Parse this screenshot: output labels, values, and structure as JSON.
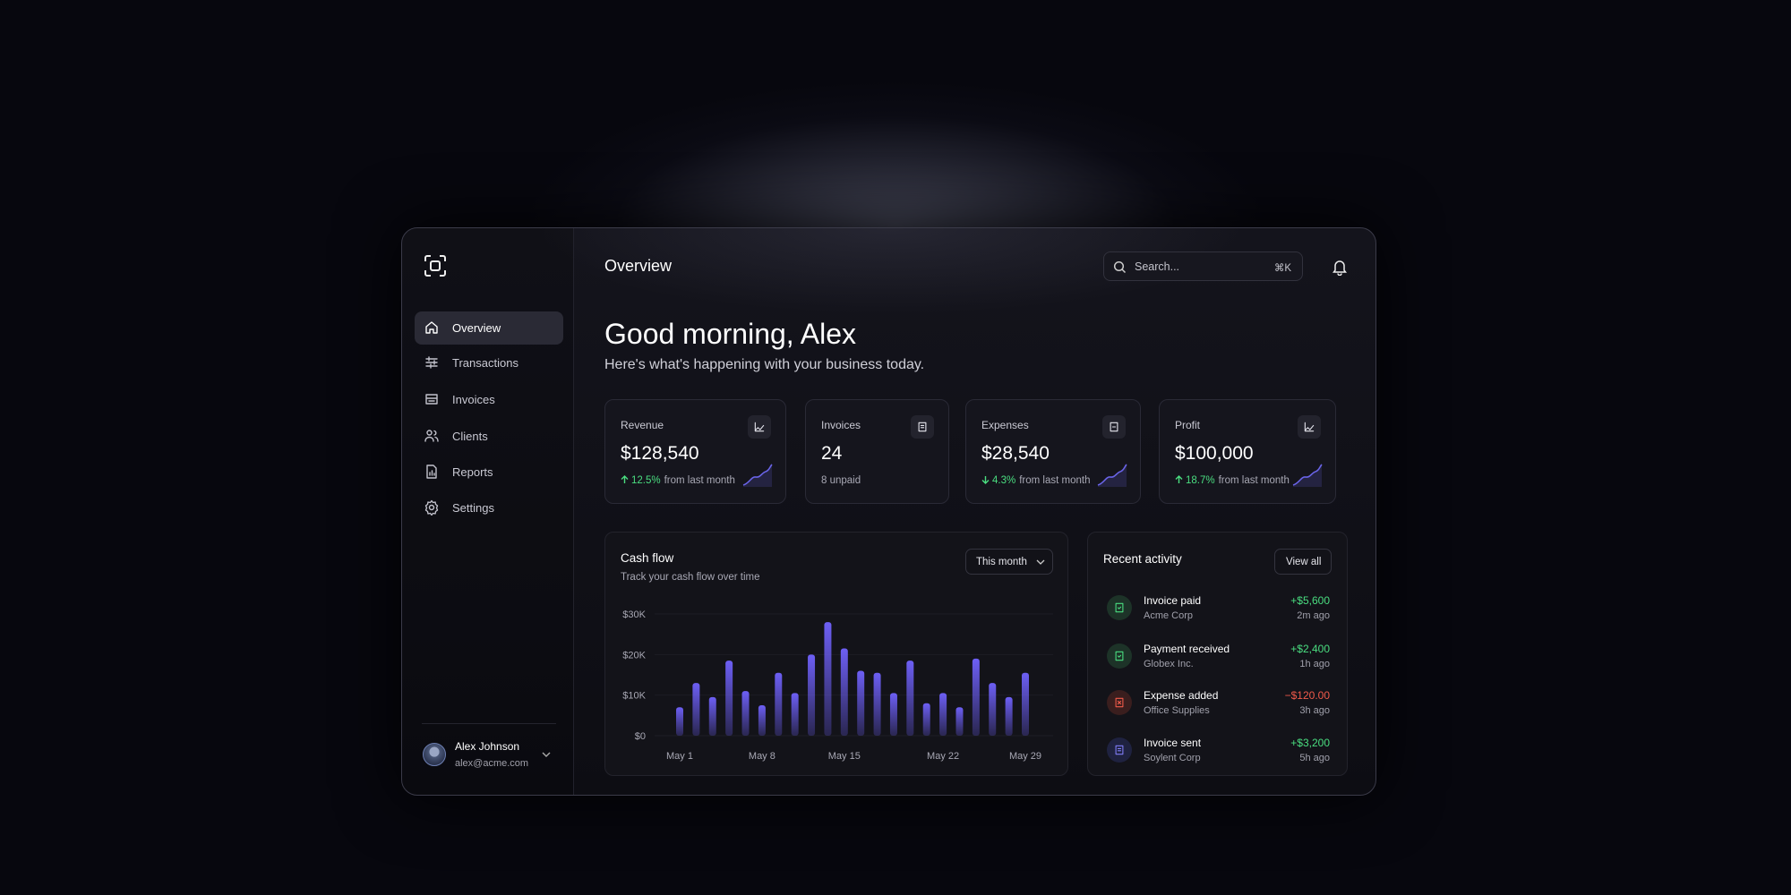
{
  "sidebar": {
    "nav": [
      "Overview",
      "Transactions",
      "Invoices",
      "Clients",
      "Reports",
      "Settings"
    ],
    "active": 0
  },
  "user": {
    "name": "Alex Johnson",
    "email": "alex@acme.com"
  },
  "header": {
    "title": "Overview",
    "search_placeholder": "Search...",
    "shortcut": "⌘K"
  },
  "greeting": {
    "title": "Good morning, Alex",
    "subtitle": "Here's what's happening with your business today."
  },
  "cards": [
    {
      "label": "Revenue",
      "value": "$128,540",
      "change": "12.5%",
      "note": "from last month",
      "trend": "up"
    },
    {
      "label": "Invoices",
      "value": "24",
      "note": "8 unpaid"
    },
    {
      "label": "Expenses",
      "value": "$28,540",
      "change": "4.3%",
      "note": "from last month",
      "trend": "down"
    },
    {
      "label": "Profit",
      "value": "$100,000",
      "change": "18.7%",
      "note": "from last month",
      "trend": "up"
    }
  ],
  "cash_flow": {
    "type": "bar",
    "title": "Cash flow",
    "subtitle": "Track your cash flow over time",
    "period": "This month",
    "categories": [
      "May 1",
      null,
      null,
      null,
      null,
      "May 8",
      null,
      null,
      null,
      null,
      "May 15",
      null,
      null,
      null,
      null,
      null,
      "May 22",
      null,
      null,
      null,
      null,
      "May 29"
    ],
    "values": [
      7000,
      13000,
      9500,
      18500,
      11000,
      7500,
      15500,
      10500,
      20000,
      28000,
      21500,
      16000,
      15500,
      10500,
      18500,
      8000,
      10500,
      7000,
      19000,
      13000,
      9500,
      15500
    ],
    "color": "#6d5ff5",
    "ylim": [
      0,
      30000
    ],
    "yticks": [
      {
        "value": 0,
        "label": "$0"
      },
      {
        "value": 10000,
        "label": "$10K"
      },
      {
        "value": 20000,
        "label": "$20K"
      },
      {
        "value": 30000,
        "label": "$30K"
      }
    ]
  },
  "activity": {
    "title": "Recent activity",
    "action": "View all",
    "items": [
      {
        "title": "Invoice paid",
        "party": "Acme Corp",
        "amount": "+$5,600",
        "time": "2m ago",
        "color": "#4ade80"
      },
      {
        "title": "Payment received",
        "party": "Globex Inc.",
        "amount": "+$2,400",
        "time": "1h ago",
        "color": "#4ade80"
      },
      {
        "title": "Expense added",
        "party": "Office Supplies",
        "amount": "−$120.00",
        "time": "3h ago",
        "color": "#f05a4a"
      },
      {
        "title": "Invoice sent",
        "party": "Soylent Corp",
        "amount": "+$3,200",
        "time": "5h ago",
        "color": "#4ade80"
      }
    ]
  }
}
